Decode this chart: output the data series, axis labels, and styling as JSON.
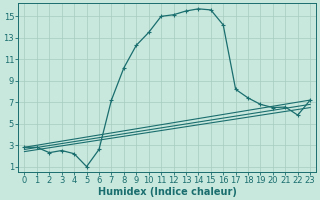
{
  "xlabel": "Humidex (Indice chaleur)",
  "bg_color": "#c8e8de",
  "grid_color": "#a8ccc0",
  "line_color": "#1a6e6e",
  "xlim": [
    -0.5,
    23.5
  ],
  "ylim": [
    0.5,
    16.2
  ],
  "xticks": [
    0,
    1,
    2,
    3,
    4,
    5,
    6,
    7,
    8,
    9,
    10,
    11,
    12,
    13,
    14,
    15,
    16,
    17,
    18,
    19,
    20,
    21,
    22,
    23
  ],
  "yticks": [
    1,
    3,
    5,
    7,
    9,
    11,
    13,
    15
  ],
  "main_x": [
    0,
    1,
    2,
    3,
    4,
    5,
    6,
    7,
    8,
    9,
    10,
    11,
    12,
    13,
    14,
    15,
    16,
    17,
    18,
    19,
    20,
    21,
    22,
    23
  ],
  "main_y": [
    2.8,
    2.8,
    2.3,
    2.5,
    2.2,
    1.0,
    2.6,
    7.2,
    10.2,
    12.3,
    13.5,
    15.0,
    15.15,
    15.5,
    15.7,
    15.6,
    14.2,
    8.2,
    7.4,
    6.8,
    6.5,
    6.55,
    5.8,
    7.2
  ],
  "trend1_x": [
    0,
    23
  ],
  "trend1_y": [
    2.8,
    7.2
  ],
  "trend2_x": [
    0,
    23
  ],
  "trend2_y": [
    2.6,
    6.8
  ],
  "trend3_x": [
    0,
    23
  ],
  "trend3_y": [
    2.4,
    6.5
  ],
  "font_size_label": 7,
  "font_size_tick": 6
}
